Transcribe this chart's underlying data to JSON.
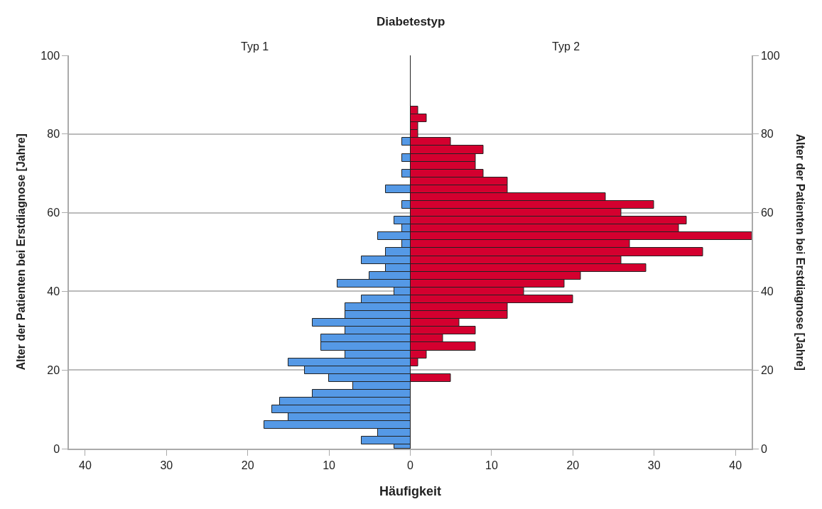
{
  "chart_data": [
    {
      "type": "histogram",
      "orientation": "horizontal",
      "title": "Diabetestyp",
      "subtitle": "Typ 1",
      "xlabel": "Häufigkeit",
      "ylabel": "Alter der Patienten bei Erstdiagnose [Jahre]",
      "bins": [
        0,
        1,
        3,
        5,
        7,
        9,
        11,
        13,
        15,
        17,
        19,
        21,
        23,
        25,
        27,
        29,
        31,
        33,
        35,
        37,
        39,
        41,
        43,
        45,
        47,
        49,
        51,
        53,
        55,
        57,
        59,
        61,
        63,
        65,
        67,
        69,
        71,
        73,
        75,
        77,
        79
      ],
      "values": [
        2,
        6,
        4,
        18,
        15,
        17,
        16,
        12,
        7,
        10,
        13,
        15,
        8,
        11,
        11,
        8,
        12,
        8,
        8,
        6,
        2,
        9,
        5,
        3,
        6,
        3,
        1,
        4,
        1,
        2,
        0,
        1,
        0,
        3,
        0,
        1,
        0,
        1,
        0,
        1
      ],
      "color": "#5599e6",
      "xlim": [
        42,
        0
      ],
      "xticks": [
        40,
        30,
        20,
        10,
        {
          "value": 0,
          "label": null
        }
      ],
      "ylim": [
        0,
        100
      ],
      "yticks": [
        0,
        20,
        40,
        60,
        80,
        100
      ],
      "grid": "y"
    },
    {
      "type": "histogram",
      "orientation": "horizontal",
      "subtitle": "Typ 2",
      "ylabel": "Alter der Patienten bei Erstdiagnose [Jahre]",
      "bins": [
        17,
        19,
        21,
        23,
        25,
        27,
        29,
        31,
        33,
        35,
        37,
        39,
        41,
        43,
        45,
        47,
        49,
        51,
        53,
        55,
        57,
        59,
        61,
        63,
        65,
        67,
        69,
        71,
        73,
        75,
        77,
        79,
        81,
        83,
        85,
        87
      ],
      "values": [
        5,
        0,
        1,
        2,
        8,
        4,
        8,
        6,
        12,
        12,
        20,
        14,
        19,
        21,
        29,
        26,
        36,
        27,
        42,
        33,
        34,
        26,
        30,
        24,
        12,
        12,
        9,
        8,
        8,
        9,
        5,
        1,
        1,
        2,
        1
      ],
      "color": "#d4002f",
      "xlim": [
        0,
        42
      ],
      "xticks": [
        0,
        10,
        20,
        30,
        40
      ],
      "ylim": [
        0,
        100
      ],
      "yticks": [
        0,
        20,
        40,
        60,
        80,
        100
      ],
      "grid": "y"
    }
  ]
}
